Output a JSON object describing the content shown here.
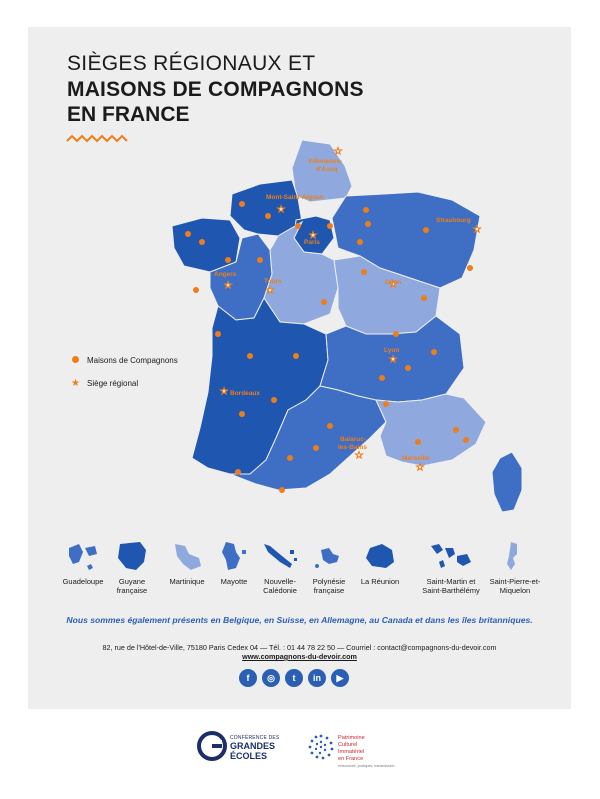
{
  "title": {
    "line1": "SIÈGES RÉGIONAUX ET",
    "line2": "MAISONS DE COMPAGNONS",
    "line3": "EN FRANCE"
  },
  "legend": {
    "maisons": "Maisons de Compagnons",
    "sieges": "Siège régional"
  },
  "cities": [
    {
      "name": "Villeneuve-d'Ascq"
    },
    {
      "name": "Mont-Saint-Aignan"
    },
    {
      "name": "Strasbourg"
    },
    {
      "name": "Paris"
    },
    {
      "name": "Angers"
    },
    {
      "name": "Tours"
    },
    {
      "name": "Dijon"
    },
    {
      "name": "Lyon"
    },
    {
      "name": "Bordeaux"
    },
    {
      "name": "Balaruc-les-Bains"
    },
    {
      "name": "Marseille"
    }
  ],
  "territories": [
    {
      "label": "Guadeloupe"
    },
    {
      "label": "Guyane française"
    },
    {
      "label": "Martinique"
    },
    {
      "label": "Mayotte"
    },
    {
      "label": "Nouvelle-Calédonie"
    },
    {
      "label": "Polynésie française"
    },
    {
      "label": "La Réunion"
    },
    {
      "label": "Saint-Martin et Saint-Barthélémy"
    },
    {
      "label": "Saint-Pierre-et-Miquelon"
    }
  ],
  "notice": "Nous sommes également présents en Belgique, en Suisse, en Allemagne, au Canada et dans les îles britanniques.",
  "address": "82, rue de l'Hôtel-de-Ville, 75180 Paris Cedex 04 — Tél. : 01 44 78 22 50 — Courriel : contact@compagnons-du-devoir.com",
  "website": "www.compagnons-du-devoir.com",
  "socials": [
    {
      "icon": "facebook-icon",
      "glyph": "f"
    },
    {
      "icon": "instagram-icon",
      "glyph": "◎"
    },
    {
      "icon": "twitter-icon",
      "glyph": "t"
    },
    {
      "icon": "linkedin-icon",
      "glyph": "in"
    },
    {
      "icon": "youtube-icon",
      "glyph": "▶"
    }
  ],
  "logos": {
    "cge_small": "CONFÉRENCE DES",
    "cge_big1": "GRANDES",
    "cge_big2": "ÉCOLES",
    "pci_line1": "Patrimoine",
    "pci_line2": "Culturel",
    "pci_line3": "Immatériel",
    "pci_line4": "en France",
    "pci_sub": "ressources, pratiques, transmission"
  },
  "colors": {
    "dark_blue": "#1f56b0",
    "mid_blue": "#3f6fc4",
    "light_blue": "#8fa9de",
    "orange": "#ee7d1a",
    "panel": "#eeeeee"
  }
}
